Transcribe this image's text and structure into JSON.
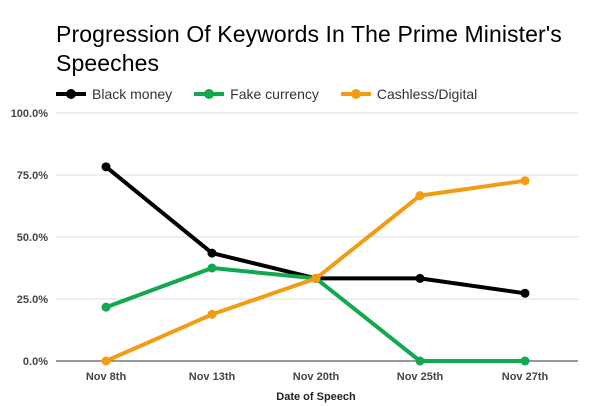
{
  "chart_data": {
    "type": "line",
    "title": "Progression Of Keywords In The Prime Minister's Speeches",
    "xlabel": "Date of Speech",
    "ylabel": "",
    "categories": [
      "Nov 8th",
      "Nov 13th",
      "Nov 20th",
      "Nov 25th",
      "Nov 27th"
    ],
    "y_tick_labels": [
      "0.0%",
      "25.0%",
      "50.0%",
      "75.0%",
      "100.0%"
    ],
    "y_ticks": [
      0,
      25,
      50,
      75,
      100
    ],
    "ylim": [
      0,
      100
    ],
    "grid": true,
    "legend_position": "top-left",
    "series": [
      {
        "name": "Black money",
        "color": "#000000",
        "values": [
          78.3,
          43.5,
          33.3,
          33.3,
          27.3
        ]
      },
      {
        "name": "Fake currency",
        "color": "#11a84e",
        "values": [
          21.7,
          37.5,
          33.3,
          0.0,
          0.0
        ]
      },
      {
        "name": "Cashless/Digital",
        "color": "#f39c12",
        "values": [
          0.0,
          18.8,
          33.3,
          66.7,
          72.7
        ]
      }
    ]
  }
}
